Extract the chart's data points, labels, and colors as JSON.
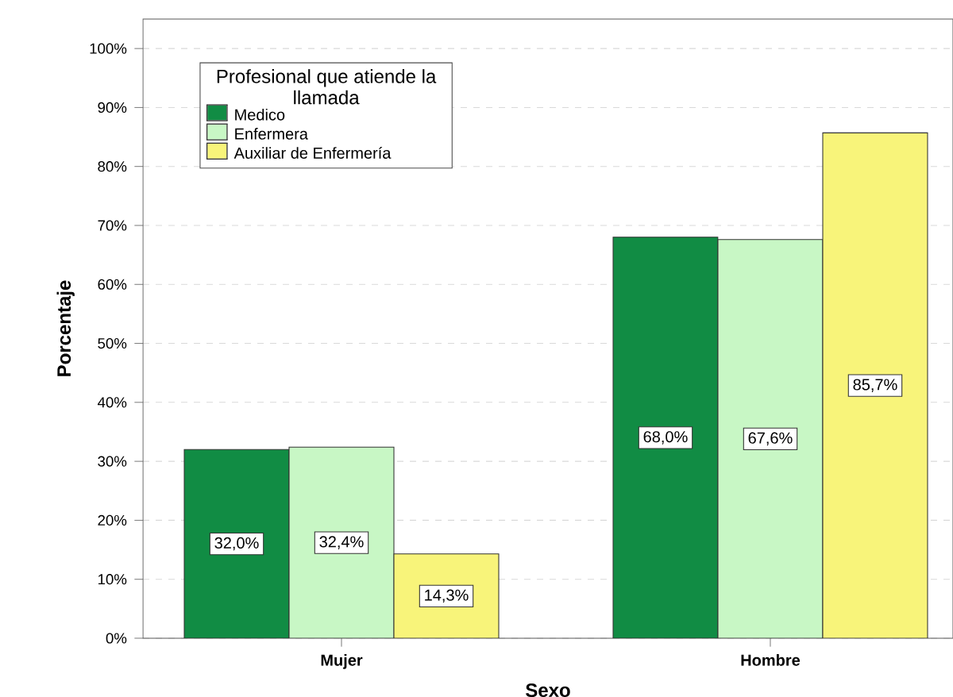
{
  "chart_data": {
    "type": "bar",
    "xlabel": "Sexo",
    "ylabel": "Porcentaje",
    "legend_title": "Profesional que atiende la llamada",
    "categories": [
      "Mujer",
      "Hombre"
    ],
    "series": [
      {
        "name": "Medico",
        "color": "#118c44",
        "values": [
          32.0,
          68.0
        ],
        "value_labels": [
          "32,0%",
          "68,0%"
        ]
      },
      {
        "name": "Enfermera",
        "color": "#c8f7c5",
        "values": [
          32.4,
          67.6
        ],
        "value_labels": [
          "32,4%",
          "67,6%"
        ]
      },
      {
        "name": "Auxiliar de Enfermería",
        "color": "#f8f47a",
        "values": [
          14.3,
          85.7
        ],
        "value_labels": [
          "14,3%",
          "85,7%"
        ]
      }
    ],
    "ylim": [
      0,
      105
    ],
    "yticks": [
      {
        "value": 0,
        "label": "0%"
      },
      {
        "value": 10,
        "label": "10%"
      },
      {
        "value": 20,
        "label": "20%"
      },
      {
        "value": 30,
        "label": "30%"
      },
      {
        "value": 40,
        "label": "40%"
      },
      {
        "value": 50,
        "label": "50%"
      },
      {
        "value": 60,
        "label": "60%"
      },
      {
        "value": 70,
        "label": "70%"
      },
      {
        "value": 80,
        "label": "80%"
      },
      {
        "value": 90,
        "label": "90%"
      },
      {
        "value": 100,
        "label": "100%"
      }
    ],
    "grid": "y",
    "legend": "top left"
  }
}
